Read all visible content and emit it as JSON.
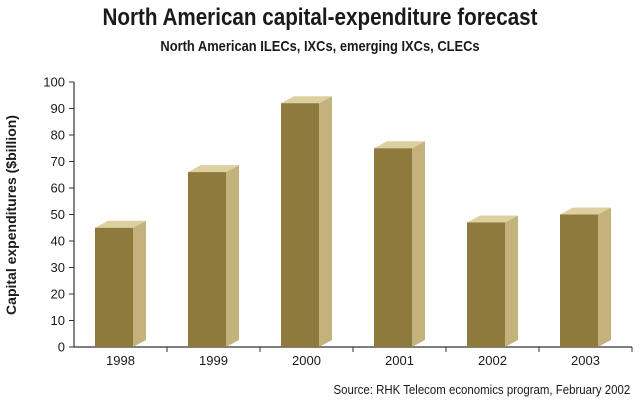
{
  "chart_data": {
    "type": "bar",
    "title": "North American capital-expenditure forecast",
    "subtitle": "North American ILECs, IXCs, emerging IXCs, CLECs",
    "ylabel": "Capital expenditures ($billion)",
    "xlabel": "",
    "categories": [
      "1998",
      "1999",
      "2000",
      "2001",
      "2002",
      "2003"
    ],
    "values": [
      45,
      66,
      92,
      75,
      47,
      50
    ],
    "ylim": [
      0,
      100
    ],
    "yticks": [
      0,
      10,
      20,
      30,
      40,
      50,
      60,
      70,
      80,
      90,
      100
    ],
    "grid": false,
    "style": "3d",
    "colors": {
      "bar_front": "#8d7a3c",
      "bar_side": "#c4b27c",
      "bar_top": "#ddd0a0",
      "axis": "#333333"
    },
    "source": "Source: RHK  Telecom economics program, February 2002"
  }
}
